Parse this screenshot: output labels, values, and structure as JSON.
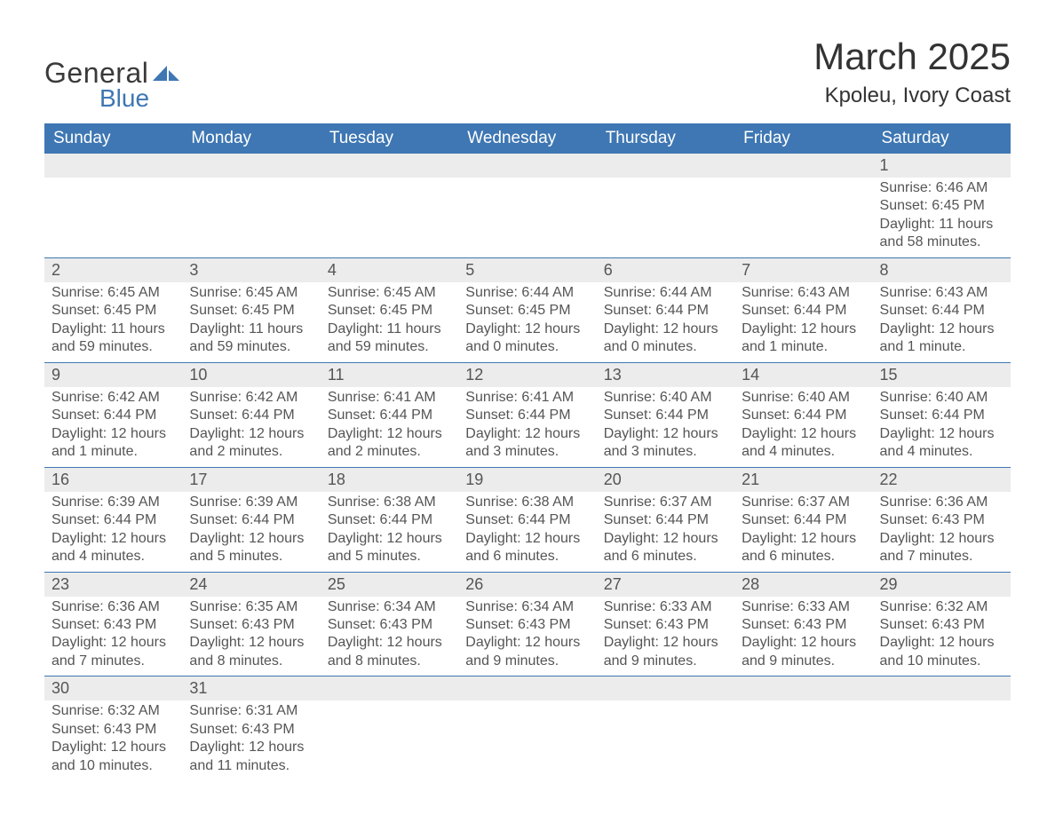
{
  "brand": {
    "word1": "General",
    "word2": "Blue"
  },
  "title": "March 2025",
  "location": "Kpoleu, Ivory Coast",
  "colors": {
    "header_bg": "#3e77b3",
    "header_text": "#ffffff",
    "strip_bg": "#ececec",
    "row_divider": "#3e77b3",
    "body_text": "#555555",
    "title_text": "#333333",
    "page_bg": "#ffffff"
  },
  "typography": {
    "title_fontsize": 42,
    "location_fontsize": 24,
    "dayhead_fontsize": 19,
    "daynum_fontsize": 18,
    "cell_fontsize": 16
  },
  "day_headers": [
    "Sunday",
    "Monday",
    "Tuesday",
    "Wednesday",
    "Thursday",
    "Friday",
    "Saturday"
  ],
  "weeks": [
    [
      {
        "empty": true
      },
      {
        "empty": true
      },
      {
        "empty": true
      },
      {
        "empty": true
      },
      {
        "empty": true
      },
      {
        "empty": true
      },
      {
        "n": "1",
        "sunrise": "Sunrise: 6:46 AM",
        "sunset": "Sunset: 6:45 PM",
        "d1": "Daylight: 11 hours",
        "d2": "and 58 minutes."
      }
    ],
    [
      {
        "n": "2",
        "sunrise": "Sunrise: 6:45 AM",
        "sunset": "Sunset: 6:45 PM",
        "d1": "Daylight: 11 hours",
        "d2": "and 59 minutes."
      },
      {
        "n": "3",
        "sunrise": "Sunrise: 6:45 AM",
        "sunset": "Sunset: 6:45 PM",
        "d1": "Daylight: 11 hours",
        "d2": "and 59 minutes."
      },
      {
        "n": "4",
        "sunrise": "Sunrise: 6:45 AM",
        "sunset": "Sunset: 6:45 PM",
        "d1": "Daylight: 11 hours",
        "d2": "and 59 minutes."
      },
      {
        "n": "5",
        "sunrise": "Sunrise: 6:44 AM",
        "sunset": "Sunset: 6:45 PM",
        "d1": "Daylight: 12 hours",
        "d2": "and 0 minutes."
      },
      {
        "n": "6",
        "sunrise": "Sunrise: 6:44 AM",
        "sunset": "Sunset: 6:44 PM",
        "d1": "Daylight: 12 hours",
        "d2": "and 0 minutes."
      },
      {
        "n": "7",
        "sunrise": "Sunrise: 6:43 AM",
        "sunset": "Sunset: 6:44 PM",
        "d1": "Daylight: 12 hours",
        "d2": "and 1 minute."
      },
      {
        "n": "8",
        "sunrise": "Sunrise: 6:43 AM",
        "sunset": "Sunset: 6:44 PM",
        "d1": "Daylight: 12 hours",
        "d2": "and 1 minute."
      }
    ],
    [
      {
        "n": "9",
        "sunrise": "Sunrise: 6:42 AM",
        "sunset": "Sunset: 6:44 PM",
        "d1": "Daylight: 12 hours",
        "d2": "and 1 minute."
      },
      {
        "n": "10",
        "sunrise": "Sunrise: 6:42 AM",
        "sunset": "Sunset: 6:44 PM",
        "d1": "Daylight: 12 hours",
        "d2": "and 2 minutes."
      },
      {
        "n": "11",
        "sunrise": "Sunrise: 6:41 AM",
        "sunset": "Sunset: 6:44 PM",
        "d1": "Daylight: 12 hours",
        "d2": "and 2 minutes."
      },
      {
        "n": "12",
        "sunrise": "Sunrise: 6:41 AM",
        "sunset": "Sunset: 6:44 PM",
        "d1": "Daylight: 12 hours",
        "d2": "and 3 minutes."
      },
      {
        "n": "13",
        "sunrise": "Sunrise: 6:40 AM",
        "sunset": "Sunset: 6:44 PM",
        "d1": "Daylight: 12 hours",
        "d2": "and 3 minutes."
      },
      {
        "n": "14",
        "sunrise": "Sunrise: 6:40 AM",
        "sunset": "Sunset: 6:44 PM",
        "d1": "Daylight: 12 hours",
        "d2": "and 4 minutes."
      },
      {
        "n": "15",
        "sunrise": "Sunrise: 6:40 AM",
        "sunset": "Sunset: 6:44 PM",
        "d1": "Daylight: 12 hours",
        "d2": "and 4 minutes."
      }
    ],
    [
      {
        "n": "16",
        "sunrise": "Sunrise: 6:39 AM",
        "sunset": "Sunset: 6:44 PM",
        "d1": "Daylight: 12 hours",
        "d2": "and 4 minutes."
      },
      {
        "n": "17",
        "sunrise": "Sunrise: 6:39 AM",
        "sunset": "Sunset: 6:44 PM",
        "d1": "Daylight: 12 hours",
        "d2": "and 5 minutes."
      },
      {
        "n": "18",
        "sunrise": "Sunrise: 6:38 AM",
        "sunset": "Sunset: 6:44 PM",
        "d1": "Daylight: 12 hours",
        "d2": "and 5 minutes."
      },
      {
        "n": "19",
        "sunrise": "Sunrise: 6:38 AM",
        "sunset": "Sunset: 6:44 PM",
        "d1": "Daylight: 12 hours",
        "d2": "and 6 minutes."
      },
      {
        "n": "20",
        "sunrise": "Sunrise: 6:37 AM",
        "sunset": "Sunset: 6:44 PM",
        "d1": "Daylight: 12 hours",
        "d2": "and 6 minutes."
      },
      {
        "n": "21",
        "sunrise": "Sunrise: 6:37 AM",
        "sunset": "Sunset: 6:44 PM",
        "d1": "Daylight: 12 hours",
        "d2": "and 6 minutes."
      },
      {
        "n": "22",
        "sunrise": "Sunrise: 6:36 AM",
        "sunset": "Sunset: 6:43 PM",
        "d1": "Daylight: 12 hours",
        "d2": "and 7 minutes."
      }
    ],
    [
      {
        "n": "23",
        "sunrise": "Sunrise: 6:36 AM",
        "sunset": "Sunset: 6:43 PM",
        "d1": "Daylight: 12 hours",
        "d2": "and 7 minutes."
      },
      {
        "n": "24",
        "sunrise": "Sunrise: 6:35 AM",
        "sunset": "Sunset: 6:43 PM",
        "d1": "Daylight: 12 hours",
        "d2": "and 8 minutes."
      },
      {
        "n": "25",
        "sunrise": "Sunrise: 6:34 AM",
        "sunset": "Sunset: 6:43 PM",
        "d1": "Daylight: 12 hours",
        "d2": "and 8 minutes."
      },
      {
        "n": "26",
        "sunrise": "Sunrise: 6:34 AM",
        "sunset": "Sunset: 6:43 PM",
        "d1": "Daylight: 12 hours",
        "d2": "and 9 minutes."
      },
      {
        "n": "27",
        "sunrise": "Sunrise: 6:33 AM",
        "sunset": "Sunset: 6:43 PM",
        "d1": "Daylight: 12 hours",
        "d2": "and 9 minutes."
      },
      {
        "n": "28",
        "sunrise": "Sunrise: 6:33 AM",
        "sunset": "Sunset: 6:43 PM",
        "d1": "Daylight: 12 hours",
        "d2": "and 9 minutes."
      },
      {
        "n": "29",
        "sunrise": "Sunrise: 6:32 AM",
        "sunset": "Sunset: 6:43 PM",
        "d1": "Daylight: 12 hours",
        "d2": "and 10 minutes."
      }
    ],
    [
      {
        "n": "30",
        "sunrise": "Sunrise: 6:32 AM",
        "sunset": "Sunset: 6:43 PM",
        "d1": "Daylight: 12 hours",
        "d2": "and 10 minutes."
      },
      {
        "n": "31",
        "sunrise": "Sunrise: 6:31 AM",
        "sunset": "Sunset: 6:43 PM",
        "d1": "Daylight: 12 hours",
        "d2": "and 11 minutes."
      },
      {
        "empty": true
      },
      {
        "empty": true
      },
      {
        "empty": true
      },
      {
        "empty": true
      },
      {
        "empty": true
      }
    ]
  ]
}
